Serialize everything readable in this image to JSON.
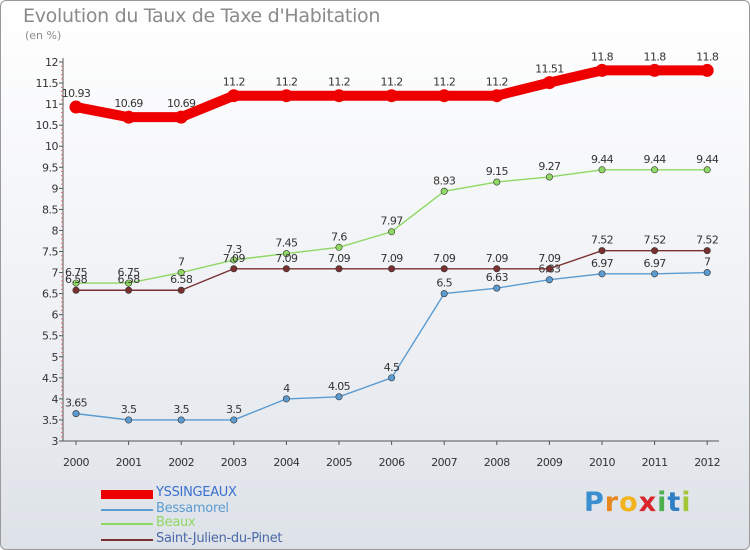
{
  "title": "Evolution du Taux de Taxe d'Habitation",
  "unit_label": "(en %)",
  "logo": {
    "text": "Proxiti",
    "letters": [
      "P",
      "r",
      "o",
      "x",
      "i",
      "t",
      "i"
    ],
    "colors": [
      "#3a8fd0",
      "#e8871e",
      "#f2b31d",
      "#d9262c",
      "#4caf50",
      "#2e7ec6",
      "#a4c639"
    ]
  },
  "chart_data": {
    "type": "line",
    "title": "Evolution du Taux de Taxe d'Habitation",
    "ylabel": "(en %)",
    "xlabel": "",
    "x": [
      "2000",
      "2001",
      "2002",
      "2003",
      "2004",
      "2005",
      "2006",
      "2007",
      "2008",
      "2009",
      "2010",
      "2011",
      "2012"
    ],
    "ylim": [
      3,
      12
    ],
    "yticks": [
      "3",
      "3.5",
      "4",
      "4.5",
      "5",
      "5.5",
      "6",
      "6.5",
      "7",
      "7.5",
      "8",
      "8.5",
      "9",
      "9.5",
      "10",
      "10.5",
      "11",
      "11.5",
      "12"
    ],
    "grid": false,
    "legend_position": "bottom-left",
    "series": [
      {
        "name": "YSSINGEAUX",
        "color": "#ee0000",
        "labels": [
          "10.93",
          "10.69",
          "10.69",
          "11.2",
          "11.2",
          "11.2",
          "11.2",
          "11.2",
          "11.2",
          "11.51",
          "11.8",
          "11.8",
          "11.8"
        ],
        "values": [
          10.93,
          10.69,
          10.69,
          11.2,
          11.2,
          11.2,
          11.2,
          11.2,
          11.2,
          11.51,
          11.8,
          11.8,
          11.8
        ]
      },
      {
        "name": "Bessamorel",
        "color": "#5b9bd0",
        "labels": [
          "3.65",
          "3.5",
          "3.5",
          "3.5",
          "4",
          "4.05",
          "4.5",
          "6.5",
          "6.63",
          "6.83",
          "6.97",
          "6.97",
          "7"
        ],
        "values": [
          3.65,
          3.5,
          3.5,
          3.5,
          4,
          4.05,
          4.5,
          6.5,
          6.63,
          6.83,
          6.97,
          6.97,
          7
        ]
      },
      {
        "name": "Beaux",
        "color": "#8fd864",
        "labels": [
          "6.75",
          "6.75",
          "7",
          "7.3",
          "7.45",
          "7.6",
          "7.97",
          "8.93",
          "9.15",
          "9.27",
          "9.44",
          "9.44",
          "9.44"
        ],
        "values": [
          6.75,
          6.75,
          7,
          7.3,
          7.45,
          7.6,
          7.97,
          8.93,
          9.15,
          9.27,
          9.44,
          9.44,
          9.44
        ]
      },
      {
        "name": "Saint-Julien-du-Pinet",
        "color": "#7a3030",
        "labels": [
          "6.58",
          "6.58",
          "6.58",
          "7.09",
          "7.09",
          "7.09",
          "7.09",
          "7.09",
          "7.09",
          "7.09",
          "7.52",
          "7.52",
          "7.52"
        ],
        "values": [
          6.58,
          6.58,
          6.58,
          7.09,
          7.09,
          7.09,
          7.09,
          7.09,
          7.09,
          7.09,
          7.52,
          7.52,
          7.52
        ]
      }
    ]
  }
}
